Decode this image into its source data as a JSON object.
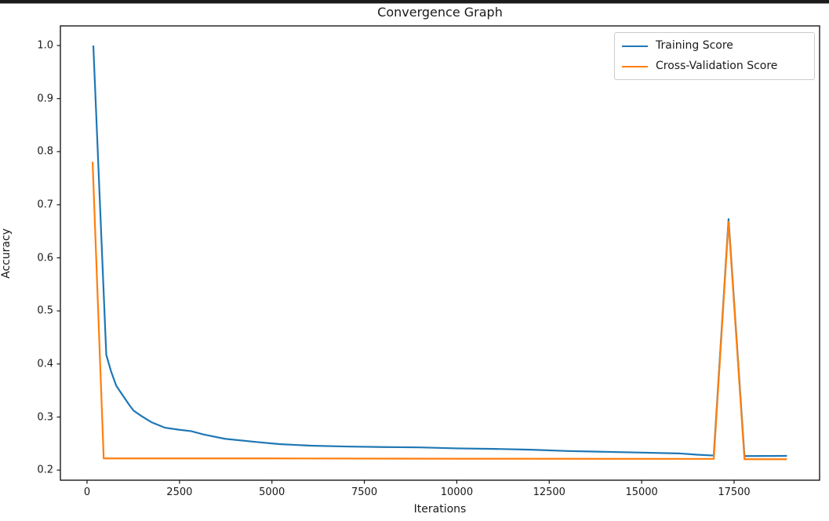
{
  "window": {
    "top_bar_color": "#1b1b1b"
  },
  "chart_data": {
    "type": "line",
    "title": "Convergence Graph",
    "xlabel": "Iterations",
    "ylabel": "Accuracy",
    "grid": false,
    "xlim": [
      -721,
      19812
    ],
    "ylim": [
      0.181,
      1.037
    ],
    "x_ticks": [
      0,
      2500,
      5000,
      7500,
      10000,
      12500,
      15000,
      17500
    ],
    "x_tick_labels": [
      "0",
      "2500",
      "5000",
      "7500",
      "10000",
      "12500",
      "15000",
      "17500"
    ],
    "y_ticks": [
      0.2,
      0.3,
      0.4,
      0.5,
      0.6,
      0.7,
      0.8,
      0.9,
      1.0
    ],
    "y_tick_labels": [
      "0.2",
      "0.3",
      "0.4",
      "0.5",
      "0.6",
      "0.7",
      "0.8",
      "0.9",
      "1.0"
    ],
    "axes_edge_color": "#1a1a1a",
    "legend": {
      "position": "upper right",
      "entries": [
        "Training Score",
        "Cross-Validation Score"
      ]
    },
    "series": [
      {
        "name": "Training Score",
        "color": "#1f77b4",
        "points": [
          [
            170,
            1.0
          ],
          [
            520,
            0.417
          ],
          [
            650,
            0.386
          ],
          [
            790,
            0.359
          ],
          [
            955,
            0.342
          ],
          [
            1150,
            0.322
          ],
          [
            1260,
            0.312
          ],
          [
            1470,
            0.302
          ],
          [
            1750,
            0.29
          ],
          [
            2100,
            0.28
          ],
          [
            2500,
            0.276
          ],
          [
            2810,
            0.2735
          ],
          [
            3160,
            0.267
          ],
          [
            3730,
            0.259
          ],
          [
            4580,
            0.253
          ],
          [
            5200,
            0.249
          ],
          [
            6060,
            0.246
          ],
          [
            7000,
            0.2445
          ],
          [
            8000,
            0.2435
          ],
          [
            9000,
            0.2428
          ],
          [
            10000,
            0.241
          ],
          [
            11000,
            0.24
          ],
          [
            12000,
            0.2385
          ],
          [
            13000,
            0.236
          ],
          [
            14000,
            0.2345
          ],
          [
            15000,
            0.233
          ],
          [
            16000,
            0.2315
          ],
          [
            16500,
            0.229
          ],
          [
            16950,
            0.2275
          ],
          [
            17350,
            0.673
          ],
          [
            17780,
            0.2265
          ],
          [
            18930,
            0.2268
          ]
        ]
      },
      {
        "name": "Cross-Validation Score",
        "color": "#ff7f0e",
        "points": [
          [
            150,
            0.781
          ],
          [
            450,
            0.222
          ],
          [
            5000,
            0.222
          ],
          [
            10000,
            0.2215
          ],
          [
            16950,
            0.2212
          ],
          [
            17350,
            0.668
          ],
          [
            17780,
            0.2205
          ],
          [
            18930,
            0.2205
          ]
        ]
      }
    ]
  }
}
